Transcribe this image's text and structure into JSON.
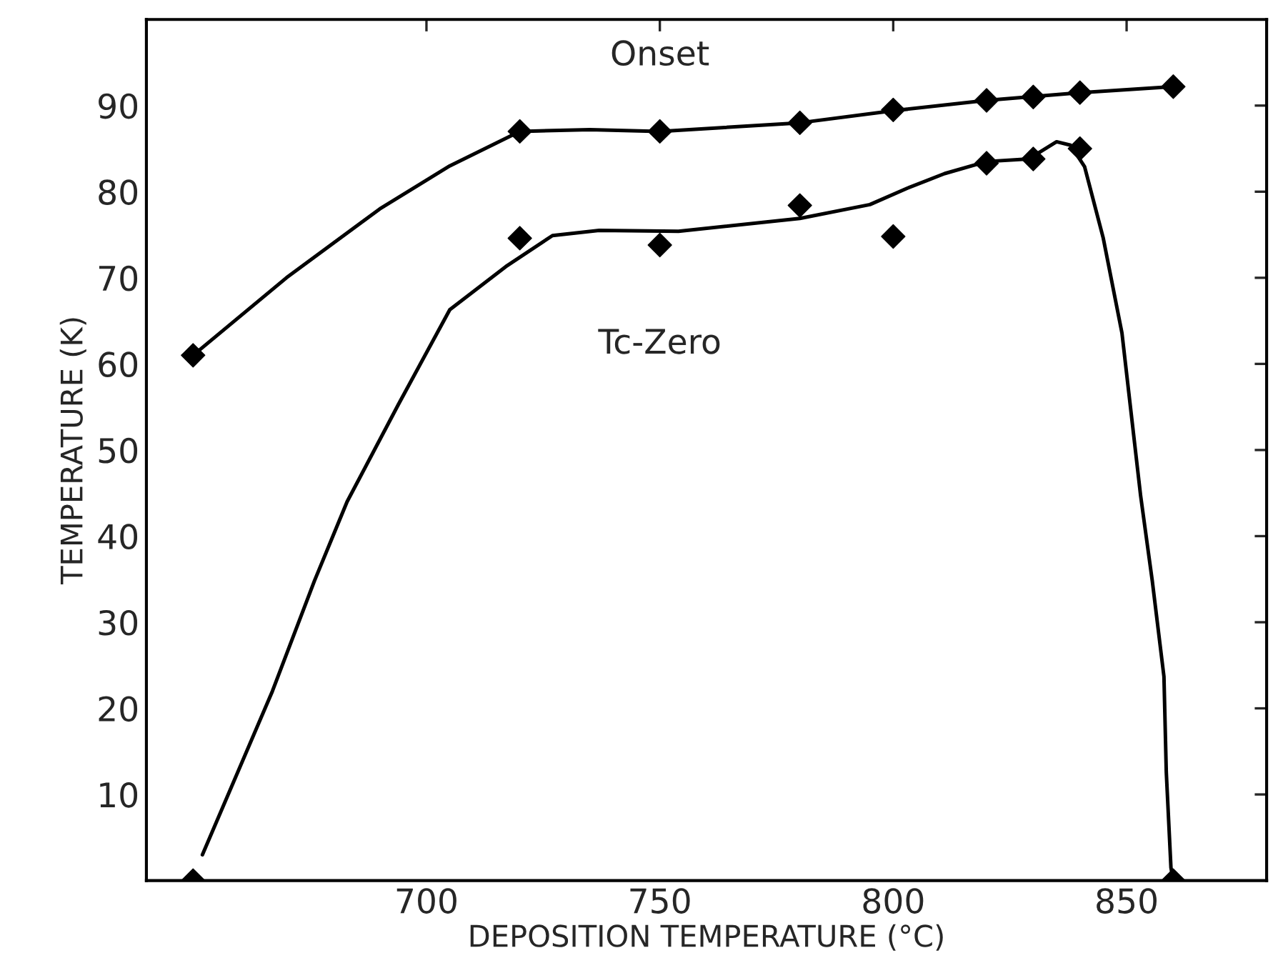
{
  "chart_data": {
    "type": "scatter",
    "xlabel": "DEPOSITION TEMPERATURE (°C)",
    "ylabel": "TEMPERATURE (K)",
    "xlim": [
      640,
      880
    ],
    "ylim": [
      0,
      100
    ],
    "xticks": [
      700,
      750,
      800,
      850
    ],
    "yticks": [
      10,
      20,
      30,
      40,
      50,
      60,
      70,
      80,
      90
    ],
    "grid": false,
    "legend": false,
    "marker": "diamond",
    "series": [
      {
        "name": "Onset",
        "color": "#000000",
        "x": [
          650,
          720,
          750,
          780,
          800,
          820,
          830,
          840,
          860
        ],
        "values": [
          61,
          87,
          87,
          88,
          89.5,
          90.6,
          91,
          91.5,
          92.2
        ]
      },
      {
        "name": "Tc-Zero",
        "color": "#000000",
        "x": [
          650,
          720,
          750,
          780,
          800,
          820,
          830,
          840,
          860
        ],
        "values": [
          0,
          74.6,
          73.8,
          78.4,
          74.8,
          83.3,
          83.8,
          85,
          0
        ]
      },
      {
        "type": "line",
        "marker": "none",
        "color": "#000000",
        "line_style": "solid",
        "x": [
          650,
          670,
          690,
          705,
          720,
          735,
          750,
          780,
          800,
          820,
          840,
          860
        ],
        "values": [
          61,
          70,
          78,
          83,
          87,
          87.2,
          87,
          88,
          89.4,
          90.6,
          91.5,
          92.2
        ]
      },
      {
        "type": "line",
        "marker": "none",
        "color": "#000000",
        "line_style": "solid",
        "x": [
          652,
          667,
          676,
          683,
          694,
          705,
          717,
          727,
          737,
          754,
          780,
          795,
          803,
          811,
          820,
          829,
          835,
          838,
          841,
          845,
          849,
          853,
          855.5,
          858,
          858.5,
          859.5,
          860
        ],
        "values": [
          3,
          22,
          34.8,
          44,
          55.3,
          66.3,
          71.3,
          74.9,
          75.5,
          75.4,
          76.9,
          78.5,
          80.4,
          82.1,
          83.5,
          83.8,
          85.8,
          85.4,
          82.9,
          74.6,
          63.6,
          44.7,
          34.8,
          23.7,
          12.6,
          1.5,
          0
        ]
      }
    ]
  }
}
